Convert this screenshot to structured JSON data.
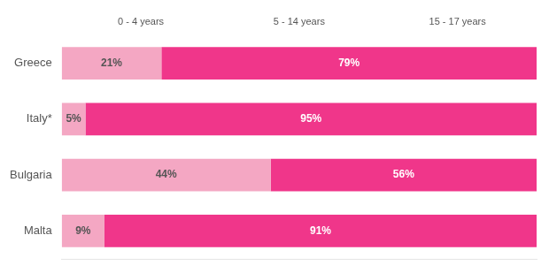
{
  "chart_data": {
    "type": "bar",
    "orientation": "horizontal",
    "stacked": true,
    "categories": [
      "Greece",
      "Italy*",
      "Bulgaria",
      "Malta"
    ],
    "series": [
      {
        "color": "#f4a7c3",
        "values": [
          21,
          5,
          44,
          9
        ],
        "value_labels": [
          "21%",
          "5%",
          "44%",
          "9%"
        ]
      },
      {
        "color": "#f0368a",
        "values": [
          79,
          95,
          56,
          91
        ],
        "value_labels": [
          "79%",
          "95%",
          "56%",
          "91%"
        ]
      }
    ],
    "xlim": [
      0,
      100
    ],
    "data_labels": true,
    "tick_labels": "y",
    "grid": false,
    "annotations": [
      "0 - 4 years",
      "5 - 14 years",
      "15 - 17 years"
    ]
  }
}
